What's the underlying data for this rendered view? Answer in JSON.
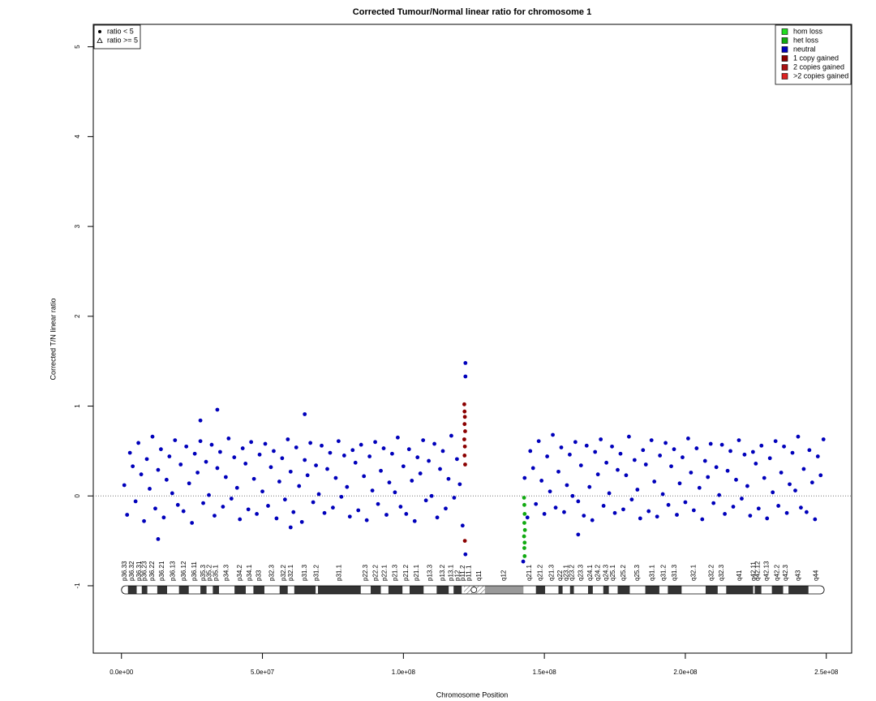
{
  "chart_data": {
    "type": "scatter",
    "title": "Corrected Tumour/Normal linear ratio for chromosome  1",
    "x_label": "Chromosome Position",
    "y_label": "Corrected T/N linear ratio",
    "xlim": [
      -10000000.0,
      259000000.0
    ],
    "ylim": [
      -1.75,
      5.25
    ],
    "xticks": [
      {
        "value": 0,
        "label": "0.0e+00"
      },
      {
        "value": 50000000.0,
        "label": "5.0e+07"
      },
      {
        "value": 100000000.0,
        "label": "1.0e+08"
      },
      {
        "value": 150000000.0,
        "label": "1.5e+08"
      },
      {
        "value": 200000000.0,
        "label": "2.0e+08"
      },
      {
        "value": 250000000.0,
        "label": "2.5e+08"
      }
    ],
    "yticks": [
      -1,
      0,
      1,
      2,
      3,
      4,
      5
    ],
    "reference_line": 0,
    "legend_position": "top-right",
    "shape_legend": [
      {
        "label": "ratio < 5",
        "shape": "circle"
      },
      {
        "label": "ratio >= 5",
        "shape": "triangle"
      }
    ],
    "shape_legend_position": "top-left",
    "series": [
      {
        "name": "hom loss",
        "color": "#22dd22",
        "x": [],
        "values": []
      },
      {
        "name": "het loss",
        "color": "#11aa11",
        "x": [
          142800000.0,
          142900000.0,
          143000000.0,
          142900000.0,
          143100000.0,
          142800000.0,
          143000000.0,
          142900000.0,
          143000000.0
        ],
        "values": [
          -0.02,
          -0.1,
          -0.2,
          -0.3,
          -0.38,
          -0.45,
          -0.52,
          -0.58,
          -0.67
        ]
      },
      {
        "name": "neutral",
        "color": "#0000bb",
        "x": [
          1000000.0,
          2000000.0,
          3000000.0,
          4000000.0,
          5000000.0,
          6000000.0,
          7000000.0,
          8000000.0,
          9000000.0,
          10000000.0,
          11000000.0,
          12000000.0,
          13000000.0,
          14000000.0,
          15000000.0,
          16000000.0,
          17000000.0,
          18000000.0,
          19000000.0,
          20000000.0,
          21000000.0,
          22000000.0,
          23000000.0,
          24000000.0,
          25000000.0,
          26000000.0,
          27000000.0,
          28000000.0,
          29000000.0,
          30000000.0,
          31000000.0,
          32000000.0,
          33000000.0,
          34000000.0,
          35000000.0,
          36000000.0,
          37000000.0,
          38000000.0,
          39000000.0,
          40000000.0,
          41000000.0,
          42000000.0,
          43000000.0,
          44000000.0,
          45000000.0,
          46000000.0,
          47000000.0,
          48000000.0,
          49000000.0,
          50000000.0,
          51000000.0,
          52000000.0,
          53000000.0,
          54000000.0,
          55000000.0,
          56000000.0,
          57000000.0,
          58000000.0,
          59000000.0,
          60000000.0,
          61000000.0,
          62000000.0,
          63000000.0,
          64000000.0,
          65000000.0,
          66000000.0,
          67000000.0,
          68000000.0,
          69000000.0,
          70000000.0,
          71000000.0,
          72000000.0,
          73000000.0,
          74000000.0,
          75000000.0,
          76000000.0,
          77000000.0,
          78000000.0,
          79000000.0,
          80000000.0,
          81000000.0,
          82000000.0,
          83000000.0,
          84000000.0,
          85000000.0,
          86000000.0,
          87000000.0,
          88000000.0,
          89000000.0,
          90000000.0,
          91000000.0,
          92000000.0,
          93000000.0,
          94000000.0,
          95000000.0,
          96000000.0,
          97000000.0,
          98000000.0,
          99000000.0,
          100000000.0,
          101000000.0,
          102000000.0,
          103000000.0,
          104000000.0,
          105000000.0,
          106000000.0,
          107000000.0,
          108000000.0,
          109000000.0,
          110000000.0,
          111000000.0,
          112000000.0,
          113000000.0,
          114000000.0,
          115000000.0,
          116000000.0,
          117000000.0,
          118000000.0,
          119000000.0,
          120000000.0,
          121000000.0,
          143000000.0,
          144000000.0,
          145000000.0,
          146000000.0,
          147000000.0,
          148000000.0,
          149000000.0,
          150000000.0,
          151000000.0,
          152000000.0,
          153000000.0,
          154000000.0,
          155000000.0,
          156000000.0,
          157000000.0,
          158000000.0,
          159000000.0,
          160000000.0,
          161000000.0,
          162000000.0,
          163000000.0,
          164000000.0,
          165000000.0,
          166000000.0,
          167000000.0,
          168000000.0,
          169000000.0,
          170000000.0,
          171000000.0,
          172000000.0,
          173000000.0,
          174000000.0,
          175000000.0,
          176000000.0,
          177000000.0,
          178000000.0,
          179000000.0,
          180000000.0,
          181000000.0,
          182000000.0,
          183000000.0,
          184000000.0,
          185000000.0,
          186000000.0,
          187000000.0,
          188000000.0,
          189000000.0,
          190000000.0,
          191000000.0,
          192000000.0,
          193000000.0,
          194000000.0,
          195000000.0,
          196000000.0,
          197000000.0,
          198000000.0,
          199000000.0,
          200000000.0,
          201000000.0,
          202000000.0,
          203000000.0,
          204000000.0,
          205000000.0,
          206000000.0,
          207000000.0,
          208000000.0,
          209000000.0,
          210000000.0,
          211000000.0,
          212000000.0,
          213000000.0,
          214000000.0,
          215000000.0,
          216000000.0,
          217000000.0,
          218000000.0,
          219000000.0,
          220000000.0,
          221000000.0,
          222000000.0,
          223000000.0,
          224000000.0,
          225000000.0,
          226000000.0,
          227000000.0,
          228000000.0,
          229000000.0,
          230000000.0,
          231000000.0,
          232000000.0,
          233000000.0,
          234000000.0,
          235000000.0,
          236000000.0,
          237000000.0,
          238000000.0,
          239000000.0,
          240000000.0,
          241000000.0,
          242000000.0,
          243000000.0,
          244000000.0,
          245000000.0,
          246000000.0,
          247000000.0,
          248000000.0,
          249000000.0,
          34000000.0,
          28000000.0,
          65000000.0,
          13000000.0,
          60000000.0,
          122000000.0,
          122000000.0,
          122000000.0,
          142500000.0,
          162000000.0
        ],
        "values": [
          0.12,
          -0.21,
          0.48,
          0.33,
          -0.06,
          0.59,
          0.24,
          -0.28,
          0.41,
          0.08,
          0.66,
          -0.14,
          0.29,
          0.52,
          -0.24,
          0.18,
          0.44,
          0.03,
          0.62,
          -0.1,
          0.35,
          -0.17,
          0.55,
          0.14,
          -0.3,
          0.47,
          0.26,
          0.61,
          -0.08,
          0.38,
          0.01,
          0.57,
          -0.22,
          0.31,
          0.49,
          -0.12,
          0.21,
          0.64,
          -0.03,
          0.43,
          0.09,
          -0.26,
          0.53,
          0.36,
          -0.15,
          0.6,
          0.19,
          -0.2,
          0.46,
          0.05,
          0.58,
          -0.11,
          0.32,
          0.5,
          -0.25,
          0.16,
          0.42,
          -0.04,
          0.63,
          0.27,
          -0.18,
          0.54,
          0.11,
          -0.29,
          0.4,
          0.23,
          0.59,
          -0.07,
          0.34,
          0.02,
          0.56,
          -0.19,
          0.3,
          0.48,
          -0.13,
          0.2,
          0.61,
          -0.01,
          0.45,
          0.1,
          -0.23,
          0.51,
          0.37,
          -0.16,
          0.57,
          0.22,
          -0.27,
          0.44,
          0.06,
          0.6,
          -0.09,
          0.28,
          0.53,
          -0.21,
          0.15,
          0.47,
          0.04,
          0.65,
          -0.12,
          0.33,
          -0.2,
          0.52,
          0.17,
          -0.28,
          0.43,
          0.25,
          0.62,
          -0.05,
          0.39,
          0.0,
          0.58,
          -0.24,
          0.3,
          0.5,
          -0.14,
          0.19,
          0.67,
          -0.02,
          0.41,
          0.13,
          -0.33,
          0.2,
          -0.24,
          0.5,
          0.31,
          -0.09,
          0.61,
          0.17,
          -0.2,
          0.44,
          0.05,
          0.68,
          -0.13,
          0.27,
          0.54,
          -0.18,
          0.12,
          0.46,
          0.0,
          0.6,
          -0.06,
          0.34,
          -0.22,
          0.56,
          0.1,
          -0.27,
          0.49,
          0.24,
          0.63,
          -0.11,
          0.37,
          0.03,
          0.55,
          -0.19,
          0.29,
          0.47,
          -0.15,
          0.23,
          0.66,
          -0.04,
          0.4,
          0.07,
          -0.25,
          0.51,
          0.35,
          -0.17,
          0.62,
          0.16,
          -0.23,
          0.45,
          0.02,
          0.59,
          -0.1,
          0.33,
          0.52,
          -0.21,
          0.14,
          0.43,
          -0.07,
          0.64,
          0.26,
          -0.16,
          0.53,
          0.09,
          -0.26,
          0.39,
          0.21,
          0.58,
          -0.08,
          0.32,
          0.01,
          0.57,
          -0.2,
          0.28,
          0.5,
          -0.12,
          0.18,
          0.62,
          -0.03,
          0.46,
          0.11,
          -0.22,
          0.49,
          0.36,
          -0.14,
          0.56,
          0.2,
          -0.25,
          0.42,
          0.04,
          0.61,
          -0.11,
          0.26,
          0.55,
          -0.19,
          0.13,
          0.48,
          0.06,
          0.66,
          -0.13,
          0.3,
          -0.18,
          0.51,
          0.15,
          -0.26,
          0.44,
          0.23,
          0.63,
          0.96,
          0.84,
          0.91,
          -0.48,
          -0.35,
          1.48,
          1.33,
          -0.65,
          -0.73,
          -0.43
        ]
      },
      {
        "name": "1 copy gained",
        "color": "#8b0000",
        "x": [
          121600000.0,
          121700000.0,
          121800000.0,
          121700000.0,
          121900000.0,
          121600000.0,
          121800000.0,
          121700000.0,
          121900000.0,
          121800000.0
        ],
        "values": [
          1.02,
          0.94,
          0.88,
          0.8,
          0.72,
          0.63,
          0.55,
          0.45,
          0.35,
          -0.5
        ]
      },
      {
        "name": "2 copies gained",
        "color": "#aa1111",
        "x": [],
        "values": []
      },
      {
        "name": ">2 copies gained",
        "color": "#dd2222",
        "x": [],
        "values": []
      }
    ],
    "ideogram": [
      {
        "name": "p36.33",
        "start": 0,
        "end": 2300000.0,
        "stain": "gneg"
      },
      {
        "name": "p36.32",
        "start": 2300000.0,
        "end": 5400000.0,
        "stain": "gpos25"
      },
      {
        "name": "p36.31",
        "start": 5400000.0,
        "end": 7200000.0,
        "stain": "gneg"
      },
      {
        "name": "p36.23",
        "start": 7200000.0,
        "end": 9200000.0,
        "stain": "gpos25"
      },
      {
        "name": "p36.22",
        "start": 9200000.0,
        "end": 12700000.0,
        "stain": "gneg"
      },
      {
        "name": "p36.21",
        "start": 12700000.0,
        "end": 16200000.0,
        "stain": "gpos50"
      },
      {
        "name": "p36.13",
        "start": 16200000.0,
        "end": 20400000.0,
        "stain": "gneg"
      },
      {
        "name": "p36.12",
        "start": 20400000.0,
        "end": 23900000.0,
        "stain": "gpos25"
      },
      {
        "name": "p36.11",
        "start": 23900000.0,
        "end": 28000000.0,
        "stain": "gneg"
      },
      {
        "name": "p35.3",
        "start": 28000000.0,
        "end": 30200000.0,
        "stain": "gpos25"
      },
      {
        "name": "p35.2",
        "start": 30200000.0,
        "end": 32400000.0,
        "stain": "gneg"
      },
      {
        "name": "p35.1",
        "start": 32400000.0,
        "end": 34600000.0,
        "stain": "gpos25"
      },
      {
        "name": "p34.3",
        "start": 34600000.0,
        "end": 40100000.0,
        "stain": "gneg"
      },
      {
        "name": "p34.2",
        "start": 40100000.0,
        "end": 44100000.0,
        "stain": "gpos25"
      },
      {
        "name": "p34.1",
        "start": 44100000.0,
        "end": 46800000.0,
        "stain": "gneg"
      },
      {
        "name": "p33",
        "start": 46800000.0,
        "end": 50700000.0,
        "stain": "gpos75"
      },
      {
        "name": "p32.3",
        "start": 50700000.0,
        "end": 56100000.0,
        "stain": "gneg"
      },
      {
        "name": "p32.2",
        "start": 56100000.0,
        "end": 59000000.0,
        "stain": "gpos50"
      },
      {
        "name": "p32.1",
        "start": 59000000.0,
        "end": 61300000.0,
        "stain": "gneg"
      },
      {
        "name": "p31.3",
        "start": 61300000.0,
        "end": 68900000.0,
        "stain": "gpos50"
      },
      {
        "name": "p31.2",
        "start": 68900000.0,
        "end": 69700000.0,
        "stain": "gneg"
      },
      {
        "name": "p31.1",
        "start": 69700000.0,
        "end": 84900000.0,
        "stain": "gpos100"
      },
      {
        "name": "p22.3",
        "start": 84900000.0,
        "end": 88400000.0,
        "stain": "gneg"
      },
      {
        "name": "p22.2",
        "start": 88400000.0,
        "end": 92000000.0,
        "stain": "gpos75"
      },
      {
        "name": "p22.1",
        "start": 92000000.0,
        "end": 94700000.0,
        "stain": "gneg"
      },
      {
        "name": "p21.3",
        "start": 94700000.0,
        "end": 99700000.0,
        "stain": "gpos75"
      },
      {
        "name": "p21.2",
        "start": 99700000.0,
        "end": 102200000.0,
        "stain": "gneg"
      },
      {
        "name": "p21.1",
        "start": 102200000.0,
        "end": 107200000.0,
        "stain": "gpos100"
      },
      {
        "name": "p13.3",
        "start": 107200000.0,
        "end": 111800000.0,
        "stain": "gneg"
      },
      {
        "name": "p13.2",
        "start": 111800000.0,
        "end": 116100000.0,
        "stain": "gpos50"
      },
      {
        "name": "p13.1",
        "start": 116100000.0,
        "end": 117800000.0,
        "stain": "gneg"
      },
      {
        "name": "p12",
        "start": 117800000.0,
        "end": 120700000.0,
        "stain": "gpos50"
      },
      {
        "name": "p11.2",
        "start": 120700000.0,
        "end": 121500000.0,
        "stain": "gneg"
      },
      {
        "name": "p11.1",
        "start": 121500000.0,
        "end": 125000000.0,
        "stain": "acen"
      },
      {
        "name": "q11",
        "start": 125000000.0,
        "end": 128900000.0,
        "stain": "acen"
      },
      {
        "name": "q12",
        "start": 128900000.0,
        "end": 142600000.0,
        "stain": "gvar"
      },
      {
        "name": "q21.1",
        "start": 142600000.0,
        "end": 147000000.0,
        "stain": "gneg"
      },
      {
        "name": "q21.2",
        "start": 147000000.0,
        "end": 150300000.0,
        "stain": "gpos50"
      },
      {
        "name": "q21.3",
        "start": 150300000.0,
        "end": 155000000.0,
        "stain": "gneg"
      },
      {
        "name": "q22",
        "start": 155000000.0,
        "end": 156500000.0,
        "stain": "gpos50"
      },
      {
        "name": "q23.1",
        "start": 156500000.0,
        "end": 159100000.0,
        "stain": "gneg"
      },
      {
        "name": "q23.2",
        "start": 159100000.0,
        "end": 160500000.0,
        "stain": "gpos50"
      },
      {
        "name": "q23.3",
        "start": 160500000.0,
        "end": 165500000.0,
        "stain": "gneg"
      },
      {
        "name": "q24.1",
        "start": 165500000.0,
        "end": 167200000.0,
        "stain": "gpos50"
      },
      {
        "name": "q24.2",
        "start": 167200000.0,
        "end": 170900000.0,
        "stain": "gneg"
      },
      {
        "name": "q24.3",
        "start": 170900000.0,
        "end": 172900000.0,
        "stain": "gpos75"
      },
      {
        "name": "q25.1",
        "start": 172900000.0,
        "end": 176000000.0,
        "stain": "gneg"
      },
      {
        "name": "q25.2",
        "start": 176000000.0,
        "end": 180300000.0,
        "stain": "gpos50"
      },
      {
        "name": "q25.3",
        "start": 180300000.0,
        "end": 185800000.0,
        "stain": "gneg"
      },
      {
        "name": "q31.1",
        "start": 185800000.0,
        "end": 190800000.0,
        "stain": "gpos100"
      },
      {
        "name": "q31.2",
        "start": 190800000.0,
        "end": 193800000.0,
        "stain": "gneg"
      },
      {
        "name": "q31.3",
        "start": 193800000.0,
        "end": 198700000.0,
        "stain": "gpos100"
      },
      {
        "name": "q32.1",
        "start": 198700000.0,
        "end": 207200000.0,
        "stain": "gneg"
      },
      {
        "name": "q32.2",
        "start": 207200000.0,
        "end": 211500000.0,
        "stain": "gpos25"
      },
      {
        "name": "q32.3",
        "start": 211500000.0,
        "end": 214500000.0,
        "stain": "gneg"
      },
      {
        "name": "q41",
        "start": 214500000.0,
        "end": 224100000.0,
        "stain": "gpos100"
      },
      {
        "name": "q42.11",
        "start": 224100000.0,
        "end": 224600000.0,
        "stain": "gneg"
      },
      {
        "name": "q42.12",
        "start": 224600000.0,
        "end": 227000000.0,
        "stain": "gpos25"
      },
      {
        "name": "q42.13",
        "start": 227000000.0,
        "end": 230700000.0,
        "stain": "gneg"
      },
      {
        "name": "q42.2",
        "start": 230700000.0,
        "end": 234700000.0,
        "stain": "gpos50"
      },
      {
        "name": "q42.3",
        "start": 234700000.0,
        "end": 236600000.0,
        "stain": "gneg"
      },
      {
        "name": "q43",
        "start": 236600000.0,
        "end": 243700000.0,
        "stain": "gpos75"
      },
      {
        "name": "q44",
        "start": 243700000.0,
        "end": 249250000.0,
        "stain": "gneg"
      }
    ]
  }
}
